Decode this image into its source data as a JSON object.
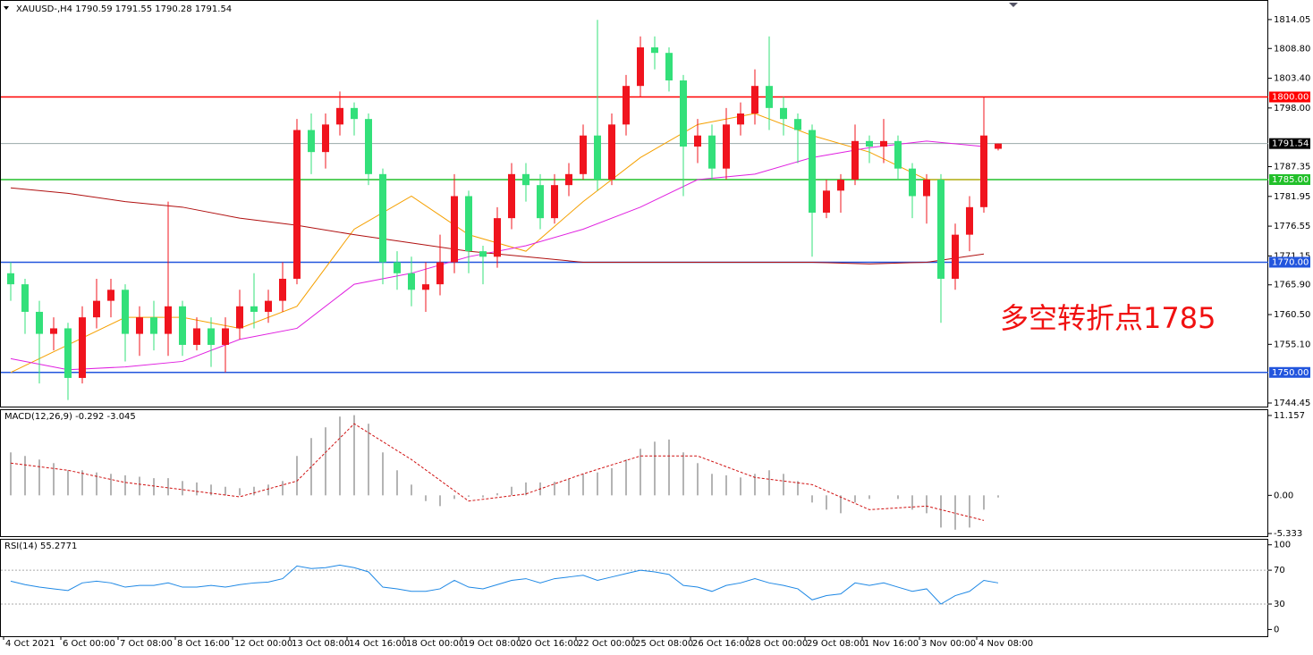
{
  "chart_data": {
    "type": "candlestick",
    "title": "XAUUSD-,H4  1790.59 1791.55 1790.28 1791.54",
    "annotation": "多空转折点1785",
    "up_color": "#f0141e",
    "down_color": "#33e07a",
    "open": [
      1768,
      1766,
      1761,
      1757,
      1758,
      1749,
      1760,
      1763,
      1765,
      1757,
      1760,
      1757,
      1762,
      1755,
      1758,
      1755,
      1758,
      1762,
      1761,
      1763,
      1767,
      1794,
      1790,
      1795,
      1798,
      1796,
      1786,
      1770,
      1768,
      1765,
      1766,
      1770,
      1782,
      1772,
      1771,
      1778,
      1786,
      1784,
      1778,
      1784,
      1786,
      1793,
      1785,
      1795,
      1802,
      1809,
      1808,
      1803,
      1791,
      1793,
      1787,
      1795,
      1797,
      1802,
      1798,
      1796,
      1794,
      1779,
      1783,
      1785,
      1792,
      1791,
      1792,
      1787,
      1782,
      1785,
      1767,
      1775,
      1780,
      1790.59
    ],
    "high": [
      1770,
      1767,
      1763,
      1760,
      1759,
      1762,
      1767,
      1767,
      1766,
      1762,
      1763,
      1781,
      1763,
      1760,
      1760,
      1760,
      1765,
      1768,
      1765,
      1770,
      1796,
      1797,
      1797,
      1801,
      1799,
      1797,
      1787,
      1772,
      1771,
      1770,
      1775,
      1786,
      1783,
      1773,
      1780,
      1788,
      1788,
      1786,
      1786,
      1788,
      1795,
      1814,
      1797,
      1804,
      1811,
      1811,
      1809,
      1804,
      1796,
      1795,
      1798,
      1799,
      1805,
      1811,
      1800,
      1797,
      1795,
      1785,
      1786,
      1795,
      1793,
      1796,
      1793,
      1788,
      1786,
      1786,
      1777,
      1782,
      1800,
      1791.55
    ],
    "low": [
      1763,
      1757,
      1748,
      1754,
      1745,
      1748,
      1758,
      1760,
      1752,
      1753,
      1754,
      1753,
      1753,
      1754,
      1751,
      1750,
      1756,
      1758,
      1759,
      1761,
      1766,
      1786,
      1787,
      1793,
      1793,
      1784,
      1766,
      1765,
      1762,
      1761,
      1764,
      1768,
      1768,
      1766,
      1769,
      1776,
      1781,
      1776,
      1777,
      1782,
      1785,
      1783,
      1784,
      1793,
      1800,
      1805,
      1801,
      1782,
      1788,
      1785,
      1785,
      1793,
      1795,
      1794,
      1793,
      1788,
      1771,
      1778,
      1779,
      1784,
      1788,
      1788,
      1785,
      1778,
      1777,
      1759,
      1765,
      1772,
      1779,
      1790.28
    ],
    "close": [
      1766,
      1761,
      1757,
      1758,
      1749,
      1760,
      1763,
      1765,
      1757,
      1760,
      1757,
      1762,
      1755,
      1758,
      1755,
      1758,
      1762,
      1761,
      1763,
      1767,
      1794,
      1790,
      1795,
      1798,
      1796,
      1786,
      1770,
      1768,
      1765,
      1766,
      1770,
      1782,
      1772,
      1771,
      1778,
      1786,
      1784,
      1778,
      1784,
      1786,
      1793,
      1785,
      1795,
      1802,
      1809,
      1808,
      1803,
      1791,
      1793,
      1787,
      1795,
      1797,
      1802,
      1798,
      1796,
      1794,
      1779,
      1783,
      1785,
      1792,
      1791,
      1792,
      1787,
      1782,
      1785,
      1767,
      1775,
      1780,
      1793,
      1791.54
    ],
    "ylim": [
      1743.8,
      1817.6
    ],
    "yticks": [
      1814.05,
      {
        "value": 1808.8,
        "label": "1808.80"
      },
      {
        "value": 1803.4,
        "label": "1803.40"
      },
      {
        "value": 1798,
        "label": "1798.00"
      },
      1787.35,
      1781.95,
      1776.55,
      1771.15,
      {
        "value": 1765.9,
        "label": "1765.90"
      },
      {
        "value": 1760.5,
        "label": "1760.50"
      },
      {
        "value": 1755.1,
        "label": "1755.10"
      },
      1744.45
    ],
    "levels": [
      {
        "value": 1800,
        "label": "1800.00",
        "color": "#ff0000"
      },
      {
        "value": 1785,
        "label": "1785.00",
        "color": "#22c02a"
      },
      {
        "value": 1770,
        "label": "1770.00",
        "color": "#2255dd"
      },
      {
        "value": 1750,
        "label": "1750.00",
        "color": "#2255dd"
      }
    ],
    "current_price": {
      "value": 1791.54,
      "label": "1791.54"
    },
    "ma_x": [
      0,
      4,
      8,
      12,
      16,
      20,
      24,
      28,
      32,
      36,
      40,
      44,
      48,
      52,
      56,
      60,
      64,
      68
    ],
    "lines": [
      {
        "color": "#f5a000",
        "values": [
          1750,
          1755,
          1760,
          1760,
          1758,
          1762,
          1776,
          1782,
          1775,
          1772,
          1781,
          1789,
          1795,
          1797,
          1793,
          1790,
          1785,
          1785
        ]
      },
      {
        "color": "#e020e0",
        "values": [
          1752.5,
          1750.5,
          1751,
          1752,
          1756,
          1758,
          1766,
          1768,
          1771,
          1773,
          1776,
          1780,
          1785,
          1786,
          1789,
          1790.8,
          1792,
          1791
        ]
      },
      {
        "color": "#b01010",
        "values": [
          1783.5,
          1782.5,
          1781,
          1780,
          1778,
          1776.7,
          1775,
          1773.5,
          1772,
          1771,
          1770,
          1770,
          1770,
          1770,
          1770,
          1769.7,
          1770,
          1771.5
        ]
      }
    ],
    "xticks": [
      {
        "value": 0,
        "label": "4 Oct 2021"
      },
      {
        "value": 4,
        "label": "6 Oct 00:00"
      },
      {
        "value": 8,
        "label": "7 Oct 08:00"
      },
      {
        "value": 12,
        "label": "8 Oct 16:00"
      },
      {
        "value": 16,
        "label": "12 Oct 00:00"
      },
      {
        "value": 20,
        "label": "13 Oct 08:00"
      },
      {
        "value": 24,
        "label": "14 Oct 16:00"
      },
      {
        "value": 28,
        "label": "18 Oct 00:00"
      },
      {
        "value": 32,
        "label": "19 Oct 08:00"
      },
      {
        "value": 36,
        "label": "20 Oct 16:00"
      },
      {
        "value": 40,
        "label": "22 Oct 00:00"
      },
      {
        "value": 44,
        "label": "25 Oct 08:00"
      },
      {
        "value": 48,
        "label": "26 Oct 16:00"
      },
      {
        "value": 52,
        "label": "28 Oct 00:00"
      },
      {
        "value": 56,
        "label": "29 Oct 08:00"
      },
      {
        "value": 60,
        "label": "1 Nov 16:00"
      },
      {
        "value": 64,
        "label": "3 Nov 00:00"
      },
      {
        "value": 68,
        "label": "4 Nov 08:00"
      }
    ],
    "macd": {
      "label": "MACD(12,26,9) -0.292 -3.045",
      "histogram": [
        6,
        5.5,
        5,
        4.5,
        3.5,
        3.5,
        3.2,
        3,
        2.8,
        2.6,
        2.4,
        2.4,
        2,
        1.8,
        1.5,
        1.2,
        1,
        1.2,
        1.5,
        2,
        5.5,
        8,
        9.5,
        11,
        11.2,
        10,
        6,
        3.5,
        1.5,
        -0.8,
        -1.5,
        -0.5,
        -0.2,
        -0.3,
        0.3,
        1.2,
        1.8,
        1.8,
        1.9,
        2.3,
        3,
        3.2,
        3.8,
        5,
        6.5,
        7.5,
        7.8,
        6,
        4.5,
        3,
        2.8,
        2.5,
        3,
        3.5,
        3,
        2,
        -1,
        -2,
        -2.5,
        -1,
        -0.5,
        0,
        -0.5,
        -2,
        -2.5,
        -4.5,
        -4.8,
        -4.5,
        -2,
        -0.3
      ],
      "hist_color": "#b4b4b4",
      "signal": [
        4.5,
        3.5,
        1.8,
        0.8,
        -0.2,
        2,
        10,
        5,
        -0.8,
        0.2,
        3,
        5.5,
        5.5,
        2.5,
        1.5,
        -2,
        -1.5,
        -3.5
      ],
      "signal_color": "#d01010",
      "ylim": [
        -5.7,
        11.9
      ],
      "yticks": [
        11.157,
        {
          "value": 0,
          "label": "0.00"
        },
        -5.333
      ]
    },
    "rsi": {
      "label": "RSI(14) 55.2771",
      "values": [
        57,
        53,
        50,
        48,
        46,
        55,
        57,
        55,
        50,
        52,
        52,
        55,
        50,
        50,
        52,
        50,
        53,
        55,
        56,
        60,
        75,
        72,
        73,
        76,
        73,
        68,
        50,
        48,
        45,
        45,
        48,
        58,
        50,
        48,
        53,
        58,
        60,
        55,
        60,
        62,
        64,
        58,
        62,
        66,
        70,
        68,
        65,
        52,
        50,
        45,
        52,
        55,
        60,
        55,
        52,
        48,
        35,
        40,
        42,
        55,
        52,
        55,
        50,
        45,
        48,
        30,
        40,
        45,
        58,
        55
      ],
      "color": "#1e88e5",
      "ylim": [
        -8,
        106
      ],
      "yticks": [
        100,
        70,
        30,
        0
      ],
      "levels": [
        70,
        30
      ]
    }
  }
}
